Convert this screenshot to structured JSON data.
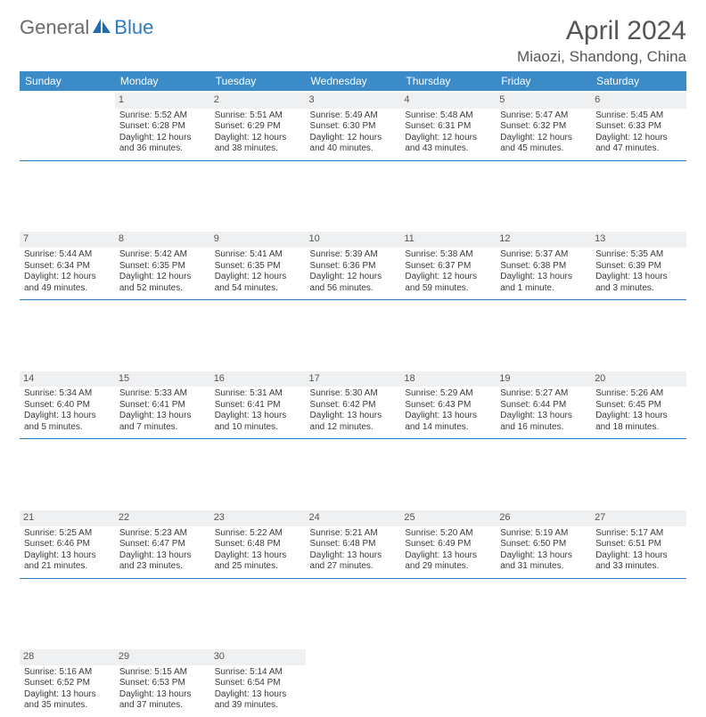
{
  "logo": {
    "part1": "General",
    "part2": "Blue"
  },
  "title": "April 2024",
  "location": "Miaozi, Shandong, China",
  "colors": {
    "header_bg": "#3b8bc8",
    "header_text": "#ffffff",
    "daynum_bg": "#eef0f2",
    "sep": "#2e7cc0",
    "logo_gray": "#6b6b6b",
    "logo_blue": "#2e7cc0"
  },
  "day_names": [
    "Sunday",
    "Monday",
    "Tuesday",
    "Wednesday",
    "Thursday",
    "Friday",
    "Saturday"
  ],
  "weeks": [
    [
      null,
      {
        "n": "1",
        "sr": "5:52 AM",
        "ss": "6:28 PM",
        "dl": "12 hours and 36 minutes."
      },
      {
        "n": "2",
        "sr": "5:51 AM",
        "ss": "6:29 PM",
        "dl": "12 hours and 38 minutes."
      },
      {
        "n": "3",
        "sr": "5:49 AM",
        "ss": "6:30 PM",
        "dl": "12 hours and 40 minutes."
      },
      {
        "n": "4",
        "sr": "5:48 AM",
        "ss": "6:31 PM",
        "dl": "12 hours and 43 minutes."
      },
      {
        "n": "5",
        "sr": "5:47 AM",
        "ss": "6:32 PM",
        "dl": "12 hours and 45 minutes."
      },
      {
        "n": "6",
        "sr": "5:45 AM",
        "ss": "6:33 PM",
        "dl": "12 hours and 47 minutes."
      }
    ],
    [
      {
        "n": "7",
        "sr": "5:44 AM",
        "ss": "6:34 PM",
        "dl": "12 hours and 49 minutes."
      },
      {
        "n": "8",
        "sr": "5:42 AM",
        "ss": "6:35 PM",
        "dl": "12 hours and 52 minutes."
      },
      {
        "n": "9",
        "sr": "5:41 AM",
        "ss": "6:35 PM",
        "dl": "12 hours and 54 minutes."
      },
      {
        "n": "10",
        "sr": "5:39 AM",
        "ss": "6:36 PM",
        "dl": "12 hours and 56 minutes."
      },
      {
        "n": "11",
        "sr": "5:38 AM",
        "ss": "6:37 PM",
        "dl": "12 hours and 59 minutes."
      },
      {
        "n": "12",
        "sr": "5:37 AM",
        "ss": "6:38 PM",
        "dl": "13 hours and 1 minute."
      },
      {
        "n": "13",
        "sr": "5:35 AM",
        "ss": "6:39 PM",
        "dl": "13 hours and 3 minutes."
      }
    ],
    [
      {
        "n": "14",
        "sr": "5:34 AM",
        "ss": "6:40 PM",
        "dl": "13 hours and 5 minutes."
      },
      {
        "n": "15",
        "sr": "5:33 AM",
        "ss": "6:41 PM",
        "dl": "13 hours and 7 minutes."
      },
      {
        "n": "16",
        "sr": "5:31 AM",
        "ss": "6:41 PM",
        "dl": "13 hours and 10 minutes."
      },
      {
        "n": "17",
        "sr": "5:30 AM",
        "ss": "6:42 PM",
        "dl": "13 hours and 12 minutes."
      },
      {
        "n": "18",
        "sr": "5:29 AM",
        "ss": "6:43 PM",
        "dl": "13 hours and 14 minutes."
      },
      {
        "n": "19",
        "sr": "5:27 AM",
        "ss": "6:44 PM",
        "dl": "13 hours and 16 minutes."
      },
      {
        "n": "20",
        "sr": "5:26 AM",
        "ss": "6:45 PM",
        "dl": "13 hours and 18 minutes."
      }
    ],
    [
      {
        "n": "21",
        "sr": "5:25 AM",
        "ss": "6:46 PM",
        "dl": "13 hours and 21 minutes."
      },
      {
        "n": "22",
        "sr": "5:23 AM",
        "ss": "6:47 PM",
        "dl": "13 hours and 23 minutes."
      },
      {
        "n": "23",
        "sr": "5:22 AM",
        "ss": "6:48 PM",
        "dl": "13 hours and 25 minutes."
      },
      {
        "n": "24",
        "sr": "5:21 AM",
        "ss": "6:48 PM",
        "dl": "13 hours and 27 minutes."
      },
      {
        "n": "25",
        "sr": "5:20 AM",
        "ss": "6:49 PM",
        "dl": "13 hours and 29 minutes."
      },
      {
        "n": "26",
        "sr": "5:19 AM",
        "ss": "6:50 PM",
        "dl": "13 hours and 31 minutes."
      },
      {
        "n": "27",
        "sr": "5:17 AM",
        "ss": "6:51 PM",
        "dl": "13 hours and 33 minutes."
      }
    ],
    [
      {
        "n": "28",
        "sr": "5:16 AM",
        "ss": "6:52 PM",
        "dl": "13 hours and 35 minutes."
      },
      {
        "n": "29",
        "sr": "5:15 AM",
        "ss": "6:53 PM",
        "dl": "13 hours and 37 minutes."
      },
      {
        "n": "30",
        "sr": "5:14 AM",
        "ss": "6:54 PM",
        "dl": "13 hours and 39 minutes."
      },
      null,
      null,
      null,
      null
    ]
  ],
  "labels": {
    "sunrise": "Sunrise:",
    "sunset": "Sunset:",
    "daylight": "Daylight:"
  }
}
